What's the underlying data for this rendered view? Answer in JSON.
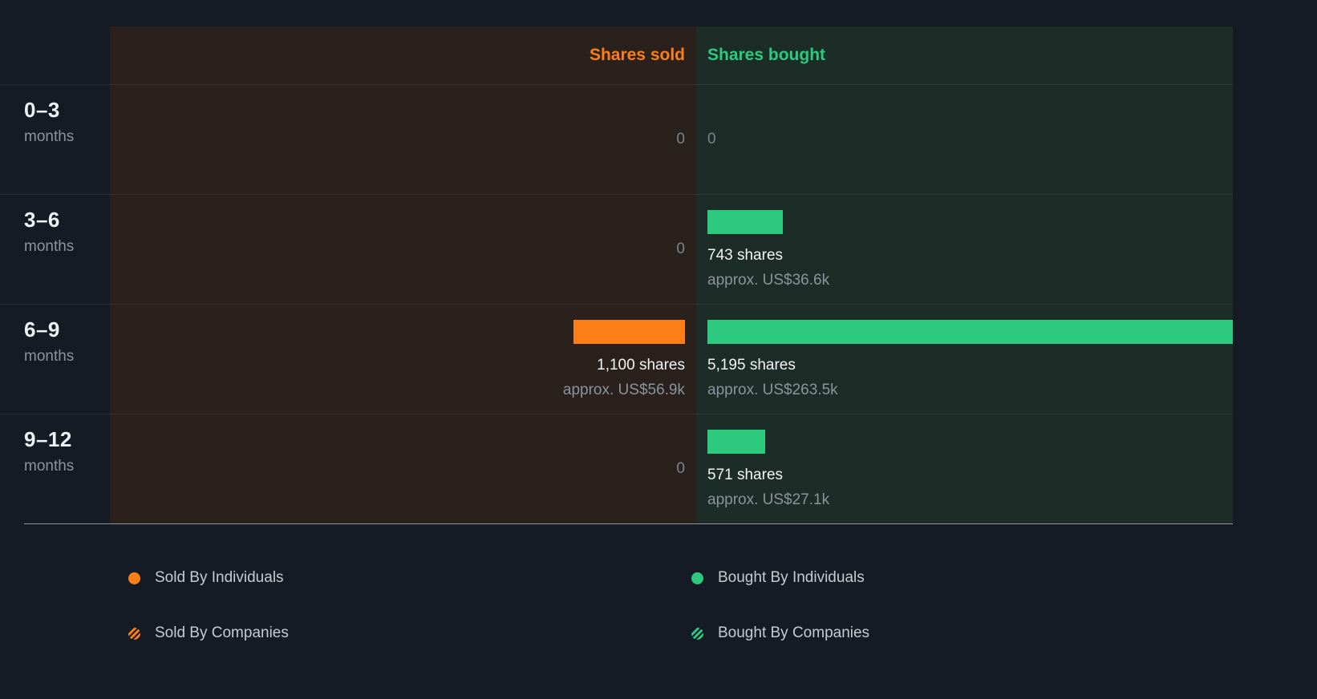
{
  "chart_data": {
    "type": "bar",
    "title": "",
    "orientation": "horizontal-diverging",
    "max_value": 5195,
    "columns": {
      "sold_header": "Shares sold",
      "bought_header": "Shares bought"
    },
    "rows": [
      {
        "period": "0–3",
        "period_unit": "months",
        "sold": {
          "shares": 0,
          "label": "0"
        },
        "bought": {
          "shares": 0,
          "label": "0"
        }
      },
      {
        "period": "3–6",
        "period_unit": "months",
        "sold": {
          "shares": 0,
          "label": "0"
        },
        "bought": {
          "shares": 743,
          "label": "743 shares",
          "approx": "approx. US$36.6k"
        }
      },
      {
        "period": "6–9",
        "period_unit": "months",
        "sold": {
          "shares": 1100,
          "label": "1,100 shares",
          "approx": "approx. US$56.9k"
        },
        "bought": {
          "shares": 5195,
          "label": "5,195 shares",
          "approx": "approx. US$263.5k"
        }
      },
      {
        "period": "9–12",
        "period_unit": "months",
        "sold": {
          "shares": 0,
          "label": "0"
        },
        "bought": {
          "shares": 571,
          "label": "571 shares",
          "approx": "approx. US$27.1k"
        }
      }
    ],
    "legend": [
      {
        "label": "Sold By Individuals",
        "color": "#fb7e17",
        "pattern": "solid"
      },
      {
        "label": "Sold By Companies",
        "color": "#fb7e17",
        "pattern": "striped"
      },
      {
        "label": "Bought By Individuals",
        "color": "#2dc97e",
        "pattern": "solid"
      },
      {
        "label": "Bought By Companies",
        "color": "#2dc97e",
        "pattern": "striped"
      }
    ],
    "colors": {
      "background": "#151b24",
      "sold_accent": "#fb7e17",
      "bought_accent": "#2dc97e",
      "sold_panel": "#2a211d",
      "bought_panel": "#1c2d28"
    }
  }
}
